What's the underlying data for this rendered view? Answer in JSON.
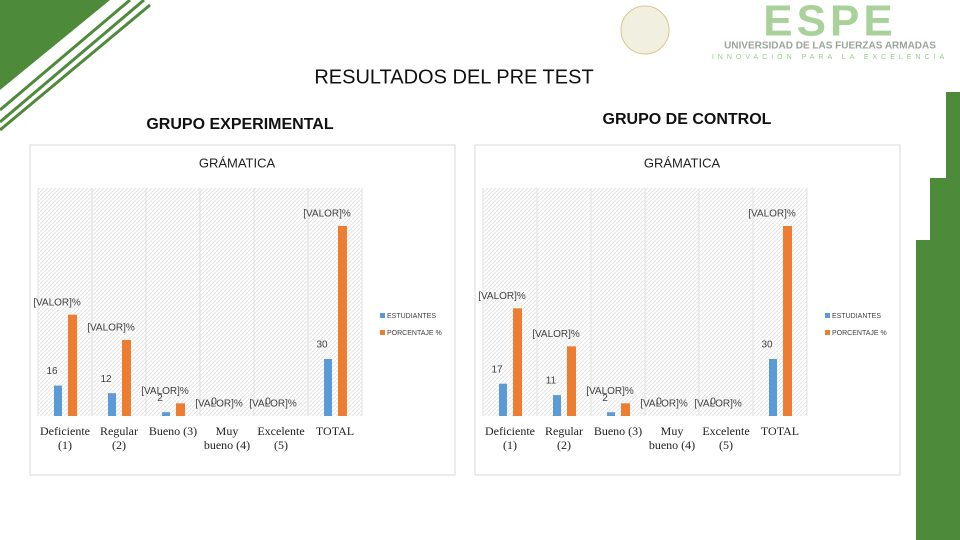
{
  "header": {
    "title": "RESULTADOS DEL PRE TEST",
    "logo": "ESPE",
    "logo_line1": "UNIVERSIDAD DE LAS FUERZAS ARMADAS",
    "logo_line2": "INNOVACIÓN PARA LA EXCELENCIA"
  },
  "groups": [
    "GRUPO EXPERIMENTAL",
    "GRUPO DE CONTROL"
  ],
  "chart_data": [
    {
      "type": "bar",
      "title": "GRÁMATICA",
      "categories": [
        "Deficiente (1)",
        "Regular (2)",
        "Bueno (3)",
        "Muy bueno (4)",
        "Excelente (5)",
        "TOTAL"
      ],
      "series": [
        {
          "name": "ESTUDIANTES",
          "color": "#5b9bd5",
          "values": [
            16,
            12,
            2,
            0,
            0,
            30
          ]
        },
        {
          "name": "PORCENTAJE %",
          "color": "#ed7d31",
          "values": [
            53.33,
            40,
            6.67,
            0,
            0,
            100
          ],
          "value_labels": [
            "[VALOR]%",
            "[VALOR]%",
            "[VALOR]%",
            "[VALOR]%",
            "[VALOR]%",
            "[VALOR]%"
          ]
        }
      ],
      "ylim": [
        0,
        120
      ],
      "legend": "right"
    },
    {
      "type": "bar",
      "title": "GRÁMATICA",
      "categories": [
        "Deficiente (1)",
        "Regular (2)",
        "Bueno (3)",
        "Muy bueno (4)",
        "Excelente (5)",
        "TOTAL"
      ],
      "series": [
        {
          "name": "ESTUDIANTES",
          "color": "#5b9bd5",
          "values": [
            17,
            11,
            2,
            0,
            0,
            30
          ]
        },
        {
          "name": "PORCENTAJE %",
          "color": "#ed7d31",
          "values": [
            56.67,
            36.67,
            6.67,
            0,
            0,
            100
          ],
          "value_labels": [
            "[VALOR]%",
            "[VALOR]%",
            "[VALOR]%",
            "[VALOR]%",
            "[VALOR]%",
            "[VALOR]%"
          ]
        }
      ],
      "ylim": [
        0,
        120
      ],
      "legend": "right"
    }
  ]
}
